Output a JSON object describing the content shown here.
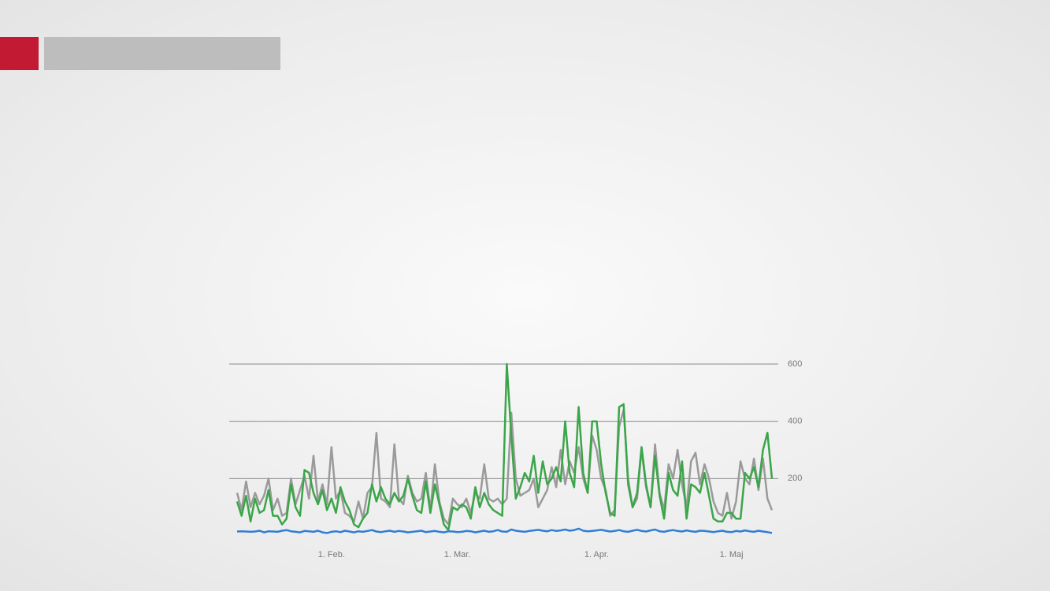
{
  "chart_data": {
    "type": "line",
    "x": [
      11,
      12,
      13,
      14,
      15,
      16,
      17,
      18,
      19,
      20,
      21,
      22,
      23,
      24,
      25,
      26,
      27,
      28,
      29,
      30,
      31,
      32,
      33,
      34,
      35,
      36,
      37,
      38,
      39,
      40,
      41,
      42,
      43,
      44,
      45,
      46,
      47,
      48,
      49,
      50,
      51,
      52,
      53,
      54,
      55,
      56,
      57,
      58,
      59,
      60,
      61,
      62,
      63,
      64,
      65,
      66,
      67,
      68,
      69,
      70,
      71,
      72,
      73,
      74,
      75,
      76,
      77,
      78,
      79,
      80,
      81,
      82,
      83,
      84,
      85,
      86,
      87,
      88,
      89,
      90,
      91,
      92,
      93,
      94,
      95,
      96,
      97,
      98,
      99,
      100,
      101,
      102,
      103,
      104,
      105,
      106,
      107,
      108,
      109,
      110,
      111,
      112,
      113,
      114,
      115,
      116,
      117,
      118,
      119,
      120,
      121,
      122,
      123,
      124,
      125,
      126,
      127,
      128,
      129,
      130
    ],
    "series": [
      {
        "color": "#9a9a9a",
        "values": [
          150,
          90,
          190,
          100,
          150,
          110,
          140,
          200,
          90,
          130,
          70,
          80,
          200,
          110,
          160,
          210,
          130,
          280,
          120,
          180,
          110,
          310,
          130,
          160,
          80,
          70,
          50,
          120,
          60,
          150,
          170,
          360,
          130,
          120,
          100,
          320,
          130,
          110,
          210,
          150,
          120,
          130,
          220,
          90,
          250,
          120,
          60,
          40,
          130,
          110,
          100,
          130,
          80,
          150,
          130,
          250,
          130,
          120,
          130,
          110,
          130,
          430,
          200,
          140,
          150,
          160,
          200,
          100,
          130,
          160,
          240,
          170,
          300,
          180,
          260,
          220,
          310,
          200,
          150,
          350,
          300,
          200,
          160,
          70,
          90,
          380,
          440,
          200,
          100,
          130,
          300,
          170,
          100,
          320,
          150,
          90,
          250,
          200,
          300,
          180,
          100,
          260,
          290,
          180,
          250,
          200,
          120,
          80,
          70,
          150,
          60,
          120,
          260,
          200,
          180,
          270,
          160,
          270,
          130,
          90
        ]
      },
      {
        "color": "#3aa648",
        "values": [
          120,
          70,
          140,
          50,
          130,
          80,
          90,
          160,
          70,
          70,
          40,
          60,
          180,
          100,
          70,
          230,
          220,
          150,
          110,
          160,
          90,
          130,
          80,
          170,
          120,
          90,
          40,
          30,
          60,
          80,
          180,
          120,
          170,
          130,
          110,
          150,
          120,
          140,
          200,
          140,
          90,
          80,
          190,
          80,
          180,
          110,
          40,
          20,
          100,
          90,
          110,
          100,
          60,
          170,
          100,
          150,
          110,
          90,
          80,
          70,
          600,
          350,
          130,
          170,
          220,
          190,
          280,
          150,
          260,
          180,
          200,
          240,
          190,
          400,
          220,
          170,
          450,
          220,
          150,
          400,
          400,
          250,
          150,
          80,
          70,
          450,
          460,
          180,
          100,
          150,
          310,
          180,
          100,
          280,
          140,
          60,
          220,
          160,
          140,
          260,
          60,
          180,
          170,
          150,
          220,
          140,
          60,
          50,
          50,
          80,
          80,
          60,
          60,
          220,
          200,
          240,
          170,
          300,
          360,
          200
        ]
      },
      {
        "color": "#2f7fd6",
        "values": [
          15,
          16,
          15,
          14,
          15,
          18,
          12,
          16,
          15,
          14,
          18,
          20,
          16,
          14,
          12,
          17,
          16,
          14,
          18,
          12,
          10,
          14,
          16,
          13,
          18,
          15,
          12,
          16,
          14,
          17,
          20,
          15,
          13,
          16,
          18,
          14,
          17,
          15,
          12,
          14,
          16,
          18,
          13,
          15,
          17,
          14,
          12,
          16,
          15,
          13,
          14,
          17,
          16,
          12,
          15,
          18,
          14,
          16,
          20,
          15,
          14,
          22,
          18,
          16,
          14,
          17,
          19,
          21,
          18,
          16,
          20,
          17,
          19,
          22,
          18,
          20,
          25,
          18,
          16,
          17,
          19,
          21,
          18,
          15,
          17,
          20,
          16,
          14,
          18,
          21,
          17,
          15,
          19,
          22,
          16,
          14,
          18,
          20,
          17,
          15,
          19,
          16,
          14,
          18,
          17,
          15,
          13,
          16,
          18,
          14,
          13,
          17,
          15,
          19,
          16,
          14,
          18,
          15,
          13,
          10
        ]
      }
    ],
    "xlim": [
      11,
      130
    ],
    "xticks": [
      {
        "value": 32,
        "label": "1. Feb."
      },
      {
        "value": 60,
        "label": "1. Mar."
      },
      {
        "value": 91,
        "label": "1. Apr."
      },
      {
        "value": 121,
        "label": "1. Maj"
      }
    ],
    "ylim": [
      0,
      600
    ],
    "yticks": [
      200,
      400,
      600
    ],
    "grid": true
  }
}
